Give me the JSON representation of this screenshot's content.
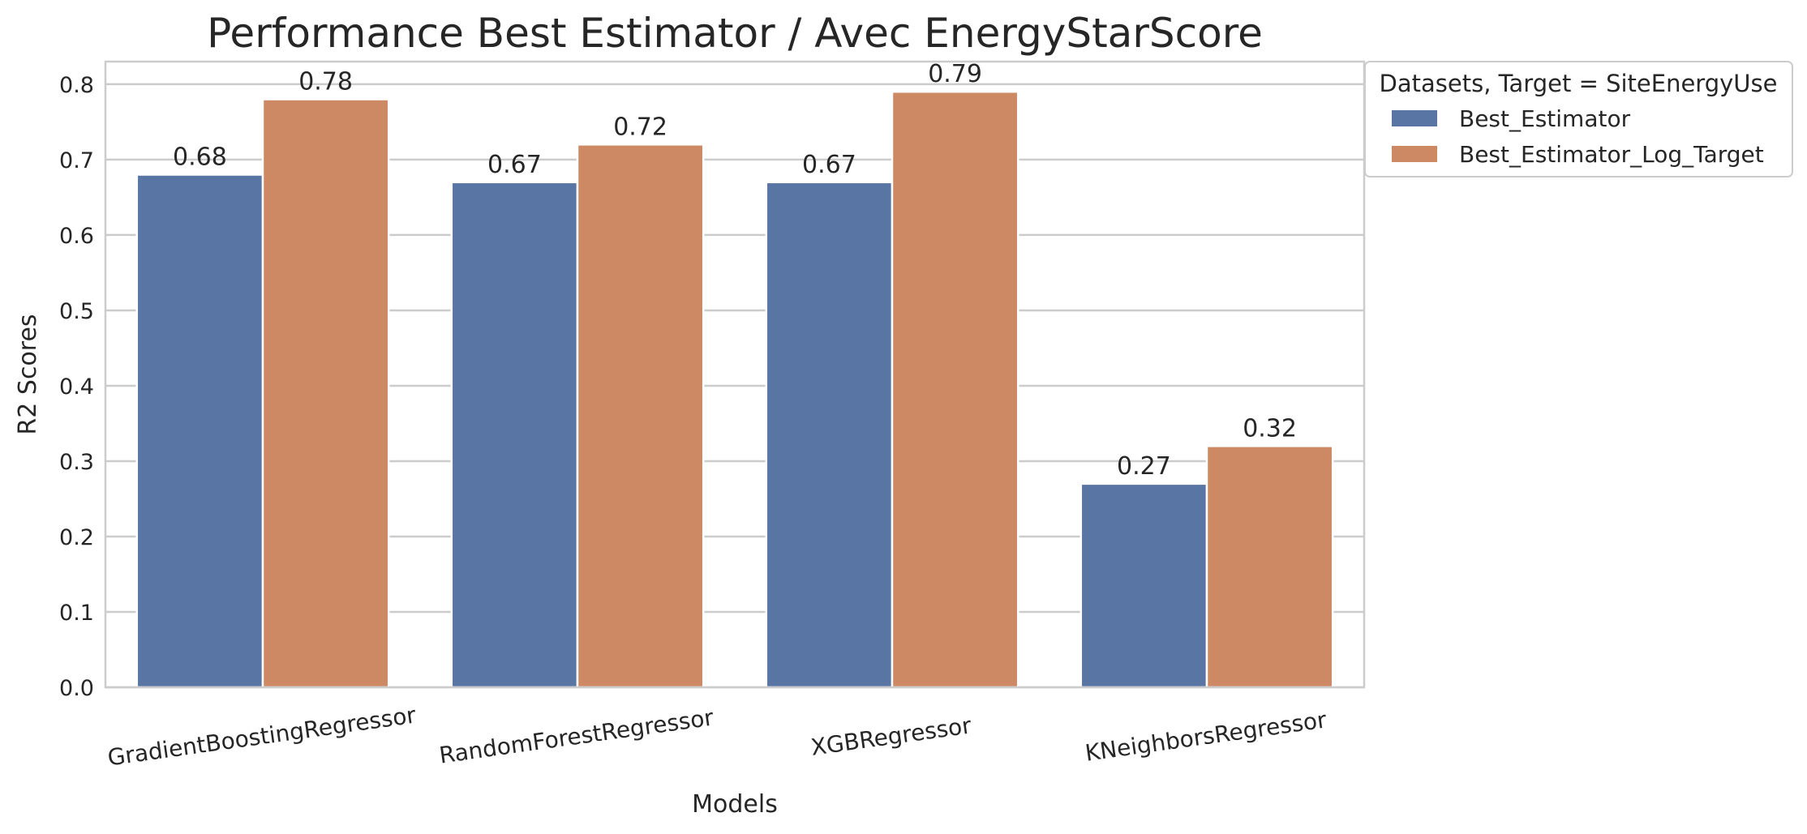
{
  "chart_data": {
    "type": "bar",
    "title": "Performance Best Estimator / Avec EnergyStarScore",
    "xlabel": "Models",
    "ylabel": "R2 Scores",
    "categories": [
      "GradientBoostingRegressor",
      "RandomForestRegressor",
      "XGBRegressor",
      "KNeighborsRegressor"
    ],
    "series": [
      {
        "name": "Best_Estimator",
        "values": [
          0.68,
          0.67,
          0.67,
          0.27
        ],
        "labels": [
          "0.68",
          "0.67",
          "0.67",
          "0.27"
        ],
        "color": "#5975a4"
      },
      {
        "name": "Best_Estimator_Log_Target",
        "values": [
          0.78,
          0.72,
          0.79,
          0.32
        ],
        "labels": [
          "0.78",
          "0.72",
          "0.79",
          "0.32"
        ],
        "color": "#cc8963"
      }
    ],
    "ylim": [
      0,
      0.83
    ],
    "yticks": [
      0.0,
      0.1,
      0.2,
      0.3,
      0.4,
      0.5,
      0.6,
      0.7,
      0.8
    ],
    "ytick_labels": [
      "0.0",
      "0.1",
      "0.2",
      "0.3",
      "0.4",
      "0.5",
      "0.6",
      "0.7",
      "0.8"
    ],
    "grid": true,
    "legend": {
      "title": "Datasets, Target = SiteEnergyUse",
      "placement": "outside-top-right"
    }
  }
}
